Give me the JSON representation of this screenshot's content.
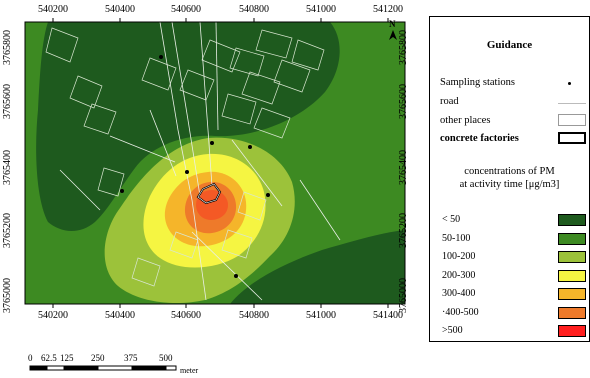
{
  "map": {
    "x_ticks": [
      "540200",
      "540400",
      "540600",
      "540800",
      "541000",
      "541200",
      "541400"
    ],
    "y_ticks_left": [
      "3765800",
      "3765600",
      "3765400",
      "3765200",
      "3765000"
    ],
    "y_ticks_right": [
      "3765800",
      "3765600",
      "3765400",
      "3765200",
      "3765000"
    ],
    "north_label": "N",
    "zone_colors": [
      "#1e5a1e",
      "#3d8a22",
      "#9cc23a",
      "#f5f542",
      "#f5b52a",
      "#ee7a2a",
      "#ff1e1e"
    ]
  },
  "legend": {
    "title": "Guidance",
    "sampling_label": "Sampling stations",
    "road_label": "road",
    "other_places_label": "other places",
    "factories_label": "concrete factories",
    "conc_title_line1": "concentrations of PM",
    "conc_title_line2": "at activity time  [μg/m3]",
    "classes": [
      {
        "label": "< 50",
        "color": "#1e5a1e"
      },
      {
        "label": "50-100",
        "color": "#3d8a22"
      },
      {
        "label": "100-200",
        "color": "#9cc23a"
      },
      {
        "label": "200-300",
        "color": "#f5f542"
      },
      {
        "label": "300-400",
        "color": "#f5b52a"
      },
      {
        "label": "·400-500",
        "color": "#ee7a2a"
      },
      {
        "label": ">500",
        "color": "#ff1e1e"
      }
    ]
  },
  "scale_bar": {
    "ticks": [
      "0",
      "62.5",
      "125",
      "250",
      "375",
      "500"
    ],
    "unit": "meter"
  }
}
